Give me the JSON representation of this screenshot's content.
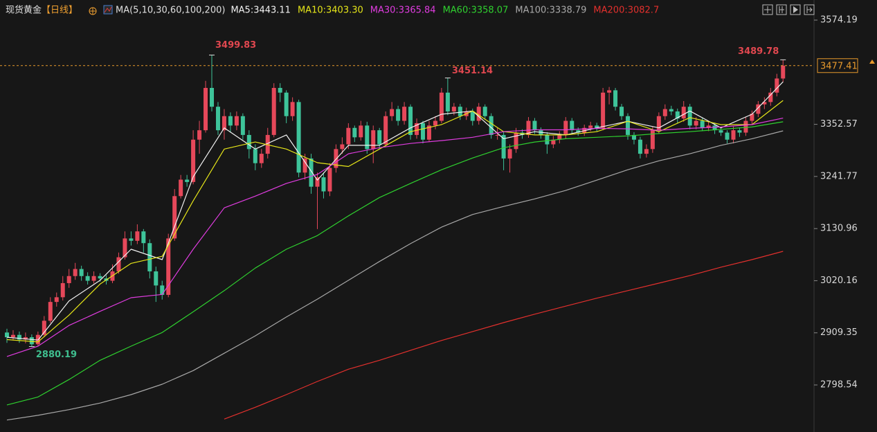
{
  "chart_data": {
    "type": "candlestick",
    "title": "现货黄金",
    "period": "【日线】",
    "indicator": "MA(5,10,30,60,100,200)",
    "up_color": "#e6485a",
    "down_color": "#3ec49a",
    "open": [
      2910,
      2900,
      2905,
      2895,
      2900,
      2885,
      2905,
      2935,
      2975,
      2985,
      3015,
      3030,
      3045,
      3030,
      3020,
      3030,
      3025,
      3020,
      3040,
      3070,
      3110,
      3105,
      3125,
      3100,
      3040,
      3010,
      2990,
      3110,
      3200,
      3235,
      3230,
      3320,
      3340,
      3430,
      3390,
      3340,
      3370,
      3350,
      3370,
      3330,
      3300,
      3270,
      3290,
      3330,
      3430,
      3420,
      3370,
      3400,
      3250,
      3280,
      3220,
      3240,
      3210,
      3260,
      3300,
      3310,
      3345,
      3325,
      3350,
      3300,
      3340,
      3310,
      3370,
      3385,
      3360,
      3390,
      3330,
      3355,
      3320,
      3350,
      3360,
      3420,
      3380,
      3390,
      3370,
      3380,
      3360,
      3390,
      3370,
      3330,
      3330,
      3280,
      3300,
      3335,
      3330,
      3360,
      3340,
      3330,
      3310,
      3320,
      3330,
      3360,
      3340,
      3335,
      3345,
      3350,
      3345,
      3420,
      3425,
      3390,
      3370,
      3330,
      3320,
      3290,
      3300,
      3340,
      3370,
      3385,
      3380,
      3365,
      3390,
      3350,
      3360,
      3345,
      3350,
      3340,
      3335,
      3320,
      3340,
      3335,
      3360,
      3375,
      3395,
      3400,
      3420,
      3450
    ],
    "high": [
      2918,
      2915,
      2912,
      2910,
      2906,
      2912,
      2945,
      2985,
      2995,
      3030,
      3045,
      3058,
      3052,
      3038,
      3040,
      3036,
      3032,
      3055,
      3080,
      3125,
      3125,
      3140,
      3130,
      3108,
      3050,
      3020,
      3120,
      3215,
      3245,
      3245,
      3340,
      3360,
      3445,
      3499.83,
      3400,
      3385,
      3378,
      3380,
      3376,
      3340,
      3310,
      3300,
      3345,
      3440,
      3440,
      3425,
      3410,
      3405,
      3290,
      3290,
      3250,
      3250,
      3270,
      3310,
      3325,
      3355,
      3350,
      3360,
      3358,
      3350,
      3345,
      3380,
      3400,
      3392,
      3400,
      3395,
      3365,
      3360,
      3360,
      3370,
      3430,
      3451.14,
      3398,
      3396,
      3388,
      3386,
      3398,
      3395,
      3376,
      3345,
      3338,
      3310,
      3345,
      3342,
      3368,
      3366,
      3346,
      3336,
      3328,
      3338,
      3368,
      3366,
      3346,
      3352,
      3358,
      3356,
      3430,
      3432,
      3430,
      3396,
      3376,
      3336,
      3326,
      3310,
      3348,
      3378,
      3395,
      3392,
      3386,
      3402,
      3396,
      3368,
      3366,
      3358,
      3356,
      3346,
      3340,
      3348,
      3346,
      3368,
      3382,
      3402,
      3410,
      3430,
      3460,
      3489.78
    ],
    "low": [
      2888,
      2893,
      2888,
      2887,
      2880.19,
      2882,
      2900,
      2930,
      2965,
      2978,
      3005,
      3022,
      3020,
      3012,
      3014,
      3018,
      3012,
      3015,
      3035,
      3065,
      3095,
      3098,
      3080,
      3025,
      2975,
      2980,
      2985,
      3105,
      3195,
      3220,
      3225,
      3290,
      3335,
      3380,
      3330,
      3320,
      3335,
      3340,
      3320,
      3280,
      3255,
      3260,
      3280,
      3325,
      3400,
      3355,
      3360,
      3240,
      3235,
      3205,
      3130,
      3195,
      3200,
      3250,
      3290,
      3300,
      3315,
      3318,
      3290,
      3270,
      3300,
      3305,
      3360,
      3350,
      3352,
      3320,
      3322,
      3312,
      3315,
      3342,
      3355,
      3372,
      3372,
      3362,
      3362,
      3350,
      3352,
      3362,
      3322,
      3320,
      3255,
      3250,
      3292,
      3322,
      3324,
      3332,
      3322,
      3290,
      3302,
      3312,
      3322,
      3332,
      3328,
      3328,
      3338,
      3338,
      3340,
      3395,
      3382,
      3362,
      3320,
      3310,
      3280,
      3282,
      3292,
      3332,
      3362,
      3372,
      3355,
      3358,
      3342,
      3342,
      3338,
      3338,
      3332,
      3328,
      3312,
      3312,
      3326,
      3328,
      3352,
      3368,
      3385,
      3392,
      3412,
      3442
    ],
    "close": [
      2900,
      2905,
      2895,
      2900,
      2885,
      2905,
      2935,
      2975,
      2985,
      3015,
      3030,
      3045,
      3030,
      3020,
      3030,
      3025,
      3020,
      3040,
      3070,
      3110,
      3105,
      3125,
      3100,
      3040,
      3010,
      2990,
      3110,
      3200,
      3235,
      3230,
      3320,
      3340,
      3430,
      3390,
      3340,
      3370,
      3350,
      3370,
      3330,
      3300,
      3270,
      3290,
      3330,
      3430,
      3420,
      3370,
      3400,
      3250,
      3280,
      3220,
      3240,
      3210,
      3260,
      3300,
      3310,
      3345,
      3325,
      3350,
      3300,
      3340,
      3310,
      3370,
      3385,
      3360,
      3390,
      3330,
      3355,
      3320,
      3350,
      3360,
      3420,
      3380,
      3390,
      3370,
      3380,
      3360,
      3390,
      3370,
      3330,
      3330,
      3280,
      3300,
      3335,
      3330,
      3360,
      3340,
      3330,
      3310,
      3320,
      3330,
      3360,
      3340,
      3335,
      3345,
      3350,
      3345,
      3420,
      3425,
      3390,
      3370,
      3330,
      3320,
      3290,
      3300,
      3340,
      3370,
      3385,
      3380,
      3365,
      3390,
      3350,
      3360,
      3345,
      3350,
      3340,
      3335,
      3320,
      3340,
      3335,
      3360,
      3375,
      3395,
      3400,
      3420,
      3450,
      3477.41
    ],
    "ma_x": [
      0,
      5,
      10,
      15,
      20,
      25,
      30,
      35,
      40,
      45,
      50,
      55,
      60,
      65,
      70,
      75,
      80,
      85,
      90,
      95,
      100,
      105,
      110,
      115,
      120,
      125
    ],
    "series": [
      {
        "label": "MA5:3443.11",
        "color": "#f2f2f2",
        "values": [
          2900,
          2894,
          2977,
          3021,
          3087,
          3065,
          3241,
          3345,
          3300,
          3330,
          3234,
          3308,
          3308,
          3345,
          3374,
          3381,
          3322,
          3337,
          3330,
          3345,
          3359,
          3345,
          3381,
          3345,
          3374,
          3443.11
        ]
      },
      {
        "label": "MA10:3403.30",
        "color": "#e6e619",
        "values": [
          2895,
          2890,
          2947,
          3013,
          3057,
          3072,
          3190,
          3300,
          3315,
          3300,
          3271,
          3263,
          3300,
          3337,
          3352,
          3381,
          3337,
          3330,
          3330,
          3337,
          3359,
          3337,
          3367,
          3352,
          3352,
          3403.3
        ]
      },
      {
        "label": "MA30:3365.84",
        "color": "#e03ce0",
        "values": [
          2859,
          2881,
          2925,
          2955,
          2984,
          2991,
          3087,
          3175,
          3200,
          3227,
          3246,
          3290,
          3303,
          3312,
          3318,
          3325,
          3337,
          3341,
          3341,
          3344,
          3343,
          3340,
          3344,
          3347,
          3352,
          3365.84
        ]
      },
      {
        "label": "MA60:3358.07",
        "color": "#2fd12f",
        "values": [
          2756,
          2773,
          2810,
          2851,
          2881,
          2910,
          2954,
          2999,
          3047,
          3087,
          3116,
          3158,
          3197,
          3227,
          3256,
          3281,
          3303,
          3315,
          3322,
          3325,
          3328,
          3333,
          3337,
          3342,
          3347,
          3358.07
        ]
      },
      {
        "label": "MA100:3338.79",
        "color": "#a8a8a8",
        "values": [
          2724,
          2734,
          2746,
          2760,
          2778,
          2800,
          2829,
          2866,
          2903,
          2943,
          2981,
          3021,
          3061,
          3099,
          3134,
          3161,
          3178,
          3194,
          3212,
          3234,
          3256,
          3275,
          3290,
          3308,
          3322,
          3338.79
        ]
      },
      {
        "label": "MA200:3082.7",
        "color": "#e3302d",
        "values": [
          null,
          null,
          null,
          null,
          null,
          null,
          null,
          2726,
          2751,
          2778,
          2806,
          2832,
          2851,
          2872,
          2893,
          2912,
          2931,
          2949,
          2966,
          2983,
          2999,
          3015,
          3031,
          3049,
          3065,
          3082.7
        ]
      }
    ],
    "ylim": [
      2698.5,
      3616.9
    ],
    "yticks": [
      2798.54,
      2909.35,
      3020.16,
      3130.96,
      3241.77,
      3352.57,
      3574.19
    ],
    "last_price_color": "#e89a2c",
    "high_label_color": "#e0474f",
    "low_label_color": "#3fbf8f"
  }
}
